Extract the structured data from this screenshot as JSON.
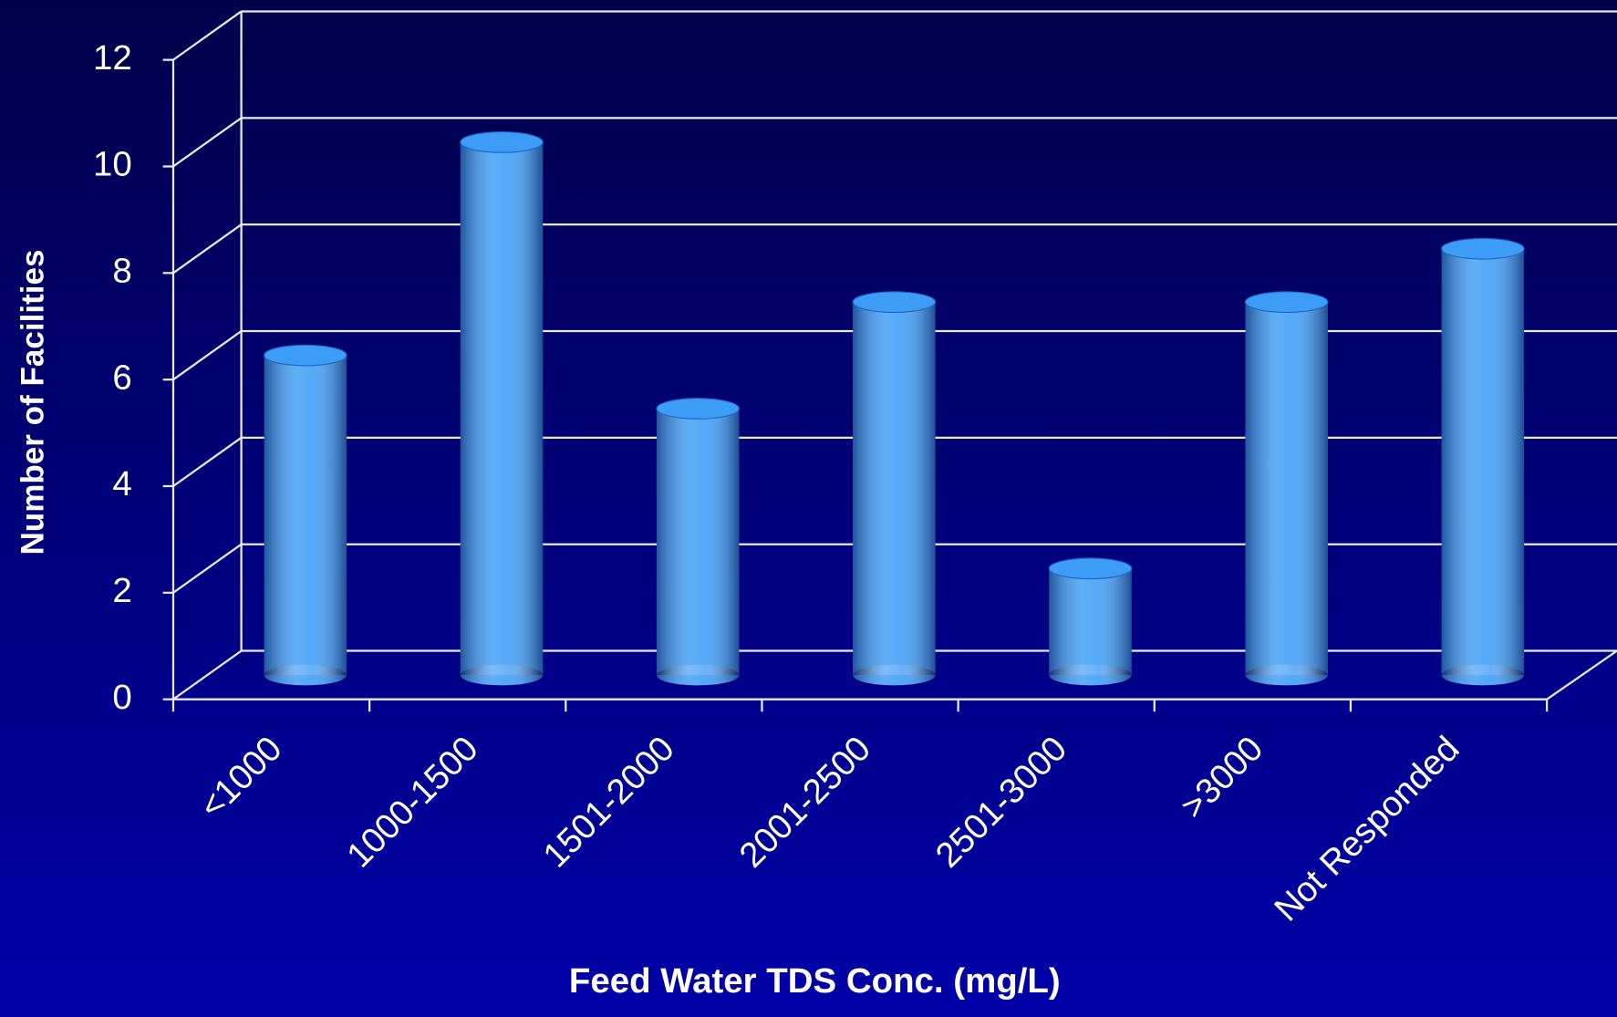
{
  "chart_data": {
    "type": "bar3d",
    "x_label": "Feed Water TDS Conc. (mg/L)",
    "y_label": "Number of Facilities",
    "categories": [
      "<1000",
      "1000-1500",
      "1501-2000",
      "2001-2500",
      "2501-3000",
      ">3000",
      "Not Responded"
    ],
    "values": [
      6,
      10,
      5,
      7,
      2,
      7,
      8
    ],
    "color": "#3d9cf5",
    "ylim": [
      0,
      12
    ],
    "yticks": [
      0,
      2,
      4,
      6,
      8,
      10,
      12
    ],
    "grid": true
  }
}
